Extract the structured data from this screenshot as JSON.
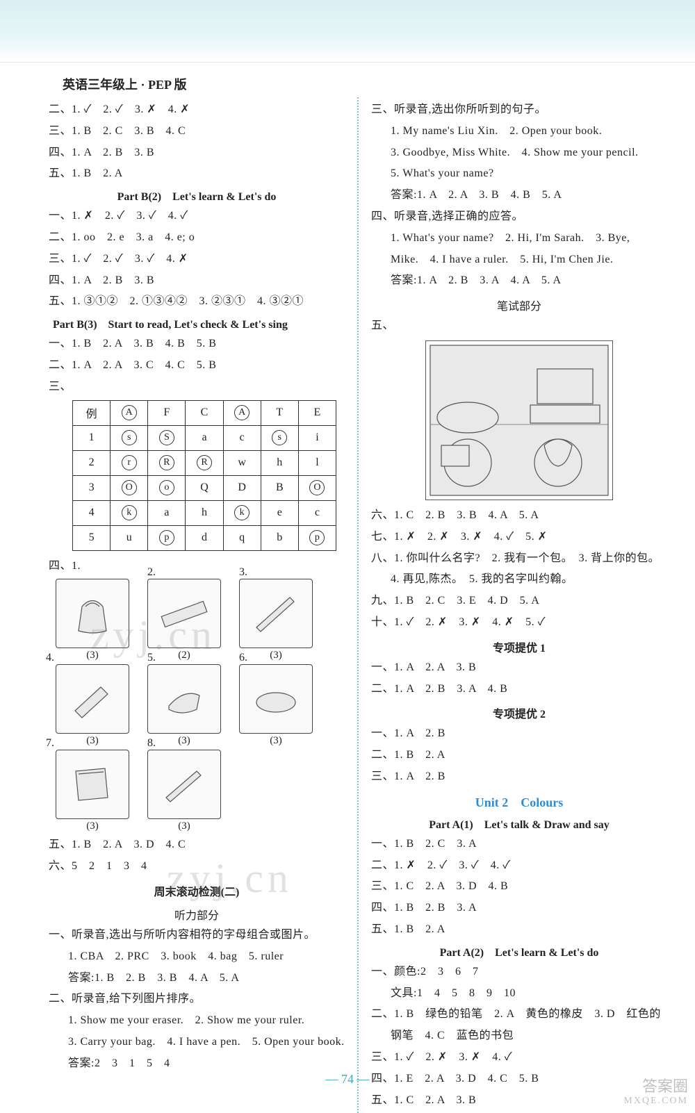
{
  "page": {
    "title": "英语三年级上 · PEP 版",
    "number": "74",
    "watermark": "zyj.cn",
    "badge": {
      "top": "答案圈",
      "bottom": "MXQE.COM"
    }
  },
  "left": {
    "l1": "二、1. ✓　2. ✓　3. ✗　4. ✗",
    "l2": "三、1. B　2. C　3. B　4. C",
    "l3": "四、1. A　2. B　3. B",
    "l4": "五、1. B　2. A",
    "partB2_head": "Part B(2)　Let's learn & Let's do",
    "b2_1": "一、1. ✗　2. ✓　3. ✓　4. ✓",
    "b2_2": "二、1. oo　2. e　3. a　4. e; o",
    "b2_3": "三、1. ✓　2. ✓　3. ✓　4. ✗",
    "b2_4": "四、1. A　2. B　3. B",
    "b2_5": "五、1. ③①②　2. ①③④②　3. ②③①　4. ③②①",
    "partB3_head": "Part B(3)　Start to read, Let's check & Let's sing",
    "b3_1": "一、1. B　2. A　3. B　4. B　5. B",
    "b3_2": "二、1. A　2. A　3. C　4. C　5. B",
    "b3_3_label": "三、",
    "table": {
      "rows": [
        [
          "例",
          "Ⓐ",
          "F",
          "C",
          "Ⓐ",
          "T",
          "E"
        ],
        [
          "1",
          "ⓢ",
          "Ⓢ",
          "a",
          "c",
          "ⓢ",
          "i"
        ],
        [
          "2",
          "ⓡ",
          "Ⓡ",
          "Ⓡ",
          "w",
          "h",
          "l"
        ],
        [
          "3",
          "Ⓞ",
          "ⓞ",
          "Q",
          "D",
          "B",
          "Ⓞ"
        ],
        [
          "4",
          "ⓚ",
          "a",
          "h",
          "ⓚ",
          "e",
          "c"
        ],
        [
          "5",
          "u",
          "ⓟ",
          "d",
          "q",
          "b",
          "ⓟ"
        ]
      ],
      "circled": [
        [
          0,
          1
        ],
        [
          0,
          4
        ],
        [
          1,
          1
        ],
        [
          1,
          2
        ],
        [
          1,
          5
        ],
        [
          2,
          1
        ],
        [
          2,
          2
        ],
        [
          2,
          3
        ],
        [
          3,
          1
        ],
        [
          3,
          2
        ],
        [
          3,
          6
        ],
        [
          4,
          1
        ],
        [
          4,
          4
        ],
        [
          5,
          2
        ],
        [
          5,
          6
        ]
      ]
    },
    "four_label": "四、1.",
    "pic_counts": [
      "(3)",
      "(2)",
      "(3)",
      "(3)",
      "(3)",
      "(3)",
      "(3)",
      "(3)"
    ],
    "pic_nums": [
      "1.",
      "2.",
      "3.",
      "4.",
      "5.",
      "6.",
      "7.",
      "8."
    ],
    "l5": "五、1. B　2. A　3. D　4. C",
    "l6": "六、5　2　1　3　4",
    "week_head": "周末滚动检测(二)",
    "listen_head": "听力部分",
    "tl1": "一、听录音,选出与所听内容相符的字母组合或图片。",
    "tl1a": "1. CBA　2. PRC　3. book　4. bag　5. ruler",
    "tl1b": "答案:1. B　2. B　3. B　4. A　5. A",
    "tl2": "二、听录音,给下列图片排序。",
    "tl2a": "1. Show me your eraser.　2. Show me your ruler.",
    "tl2b": "3. Carry your bag.　4. I have a pen.　5. Open your book.",
    "tl2c": "答案:2　3　1　5　4"
  },
  "right": {
    "r1": "三、听录音,选出你所听到的句子。",
    "r1a": "1. My name's Liu Xin.　2. Open your book.",
    "r1b": "3. Goodbye, Miss White.　4. Show me your pencil.",
    "r1c": "5. What's your name?",
    "r1d": "答案:1. A　2. A　3. B　4. B　5. A",
    "r2": "四、听录音,选择正确的应答。",
    "r2a": "1. What's your name?　2. Hi, I'm Sarah.　3. Bye,",
    "r2b": "Mike.　4. I have a ruler.　5. Hi, I'm Chen Jie.",
    "r2c": "答案:1. A　2. B　3. A　4. A　5. A",
    "write_head": "笔试部分",
    "five_label": "五、",
    "r6": "六、1. C　2. B　3. B　4. A　5. A",
    "r7": "七、1. ✗　2. ✗　3. ✗　4. ✓　5. ✗",
    "r8a": "八、1. 你叫什么名字?　2. 我有一个包。　3. 背上你的包。",
    "r8b": "4. 再见,陈杰。　5. 我的名字叫约翰。",
    "r9": "九、1. B　2. C　3. E　4. D　5. A",
    "r10": "十、1. ✓　2. ✗　3. ✗　4. ✗　5. ✓",
    "sp1_head": "专项提优 1",
    "sp1_1": "一、1. A　2. A　3. B",
    "sp1_2": "二、1. A　2. B　3. A　4. B",
    "sp2_head": "专项提优 2",
    "sp2_1": "一、1. A　2. B",
    "sp2_2": "二、1. B　2. A",
    "sp2_3": "三、1. A　2. B",
    "unit2_head": "Unit 2　Colours",
    "pa1_head": "Part A(1)　Let's talk & Draw and say",
    "pa1_1": "一、1. B　2. C　3. A",
    "pa1_2": "二、1. ✗　2. ✓　3. ✓　4. ✓",
    "pa1_3": "三、1. C　2. A　3. D　4. B",
    "pa1_4": "四、1. B　2. B　3. A",
    "pa1_5": "五、1. B　2. A",
    "pa2_head": "Part A(2)　Let's learn & Let's do",
    "pa2_1": "一、颜色:2　3　6　7",
    "pa2_1b": "文具:1　4　5　8　9　10",
    "pa2_2a": "二、1. B　绿色的铅笔　2. A　黄色的橡皮　3. D　红色的",
    "pa2_2b": "钢笔　4. C　蓝色的书包",
    "pa2_3": "三、1. ✓　2. ✗　3. ✗　4. ✓",
    "pa2_4": "四、1. E　2. A　3. D　4. C　5. B",
    "pa2_5": "五、1. C　2. A　3. B"
  }
}
